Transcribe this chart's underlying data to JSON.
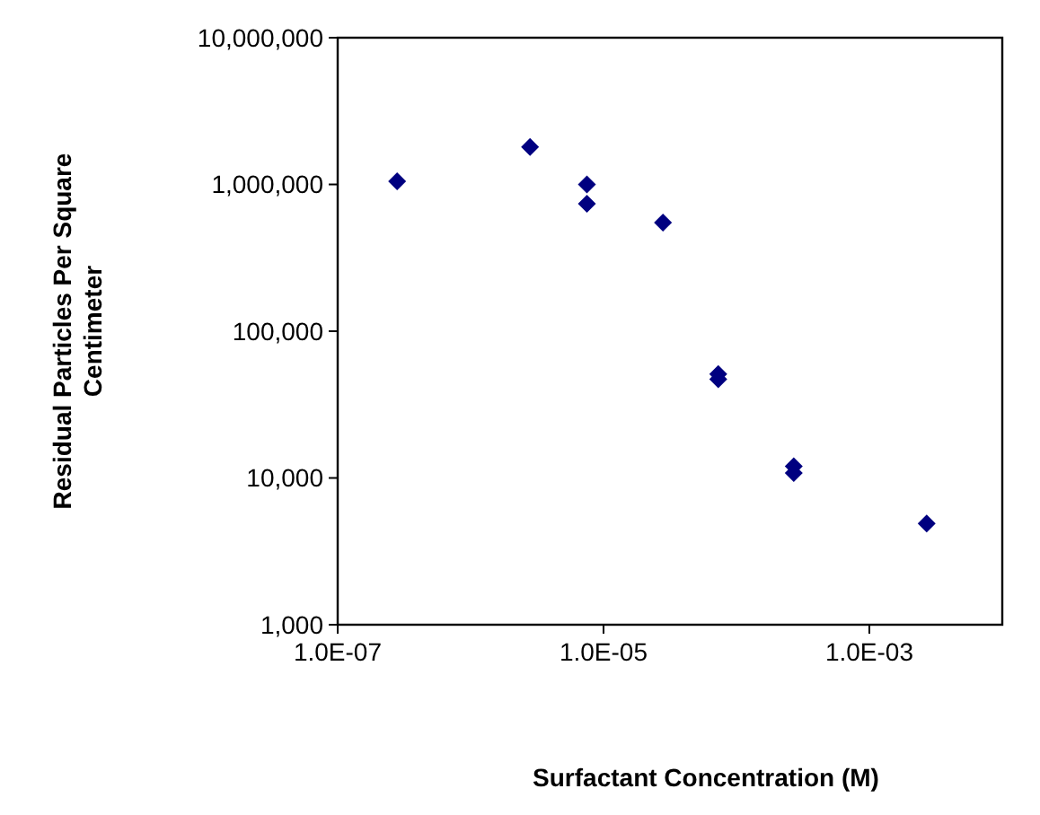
{
  "chart_data": {
    "type": "scatter",
    "xlabel": "Surfactant Concentration (M)",
    "ylabel": "Residual Particles Per Square Centimeter",
    "log": "xy",
    "grid": false,
    "marker": "diamond",
    "xlim": [
      1e-07,
      0.01
    ],
    "xticks": [
      {
        "value": 1e-07,
        "label": "1.0E-07"
      },
      {
        "value": 1e-05,
        "label": "1.0E-05"
      },
      {
        "value": 0.001,
        "label": "1.0E-03"
      }
    ],
    "ylim": [
      1000,
      10000000
    ],
    "yticks": [
      {
        "value": 1000,
        "label": "1,000"
      },
      {
        "value": 10000,
        "label": "10,000"
      },
      {
        "value": 100000,
        "label": "100,000"
      },
      {
        "value": 1000000,
        "label": "1,000,000"
      },
      {
        "value": 10000000,
        "label": "10,000,000"
      }
    ],
    "series": [
      {
        "color": "#000080",
        "x": [
          2.8e-07,
          2.8e-06,
          7.5e-06,
          7.5e-06,
          2.8e-05,
          7.3e-05,
          7.3e-05,
          0.00027,
          0.00027,
          0.0027
        ],
        "values": [
          1050000,
          1800000,
          1000000,
          740000,
          550000,
          51000,
          47000,
          12000,
          10800,
          4900
        ]
      }
    ]
  }
}
